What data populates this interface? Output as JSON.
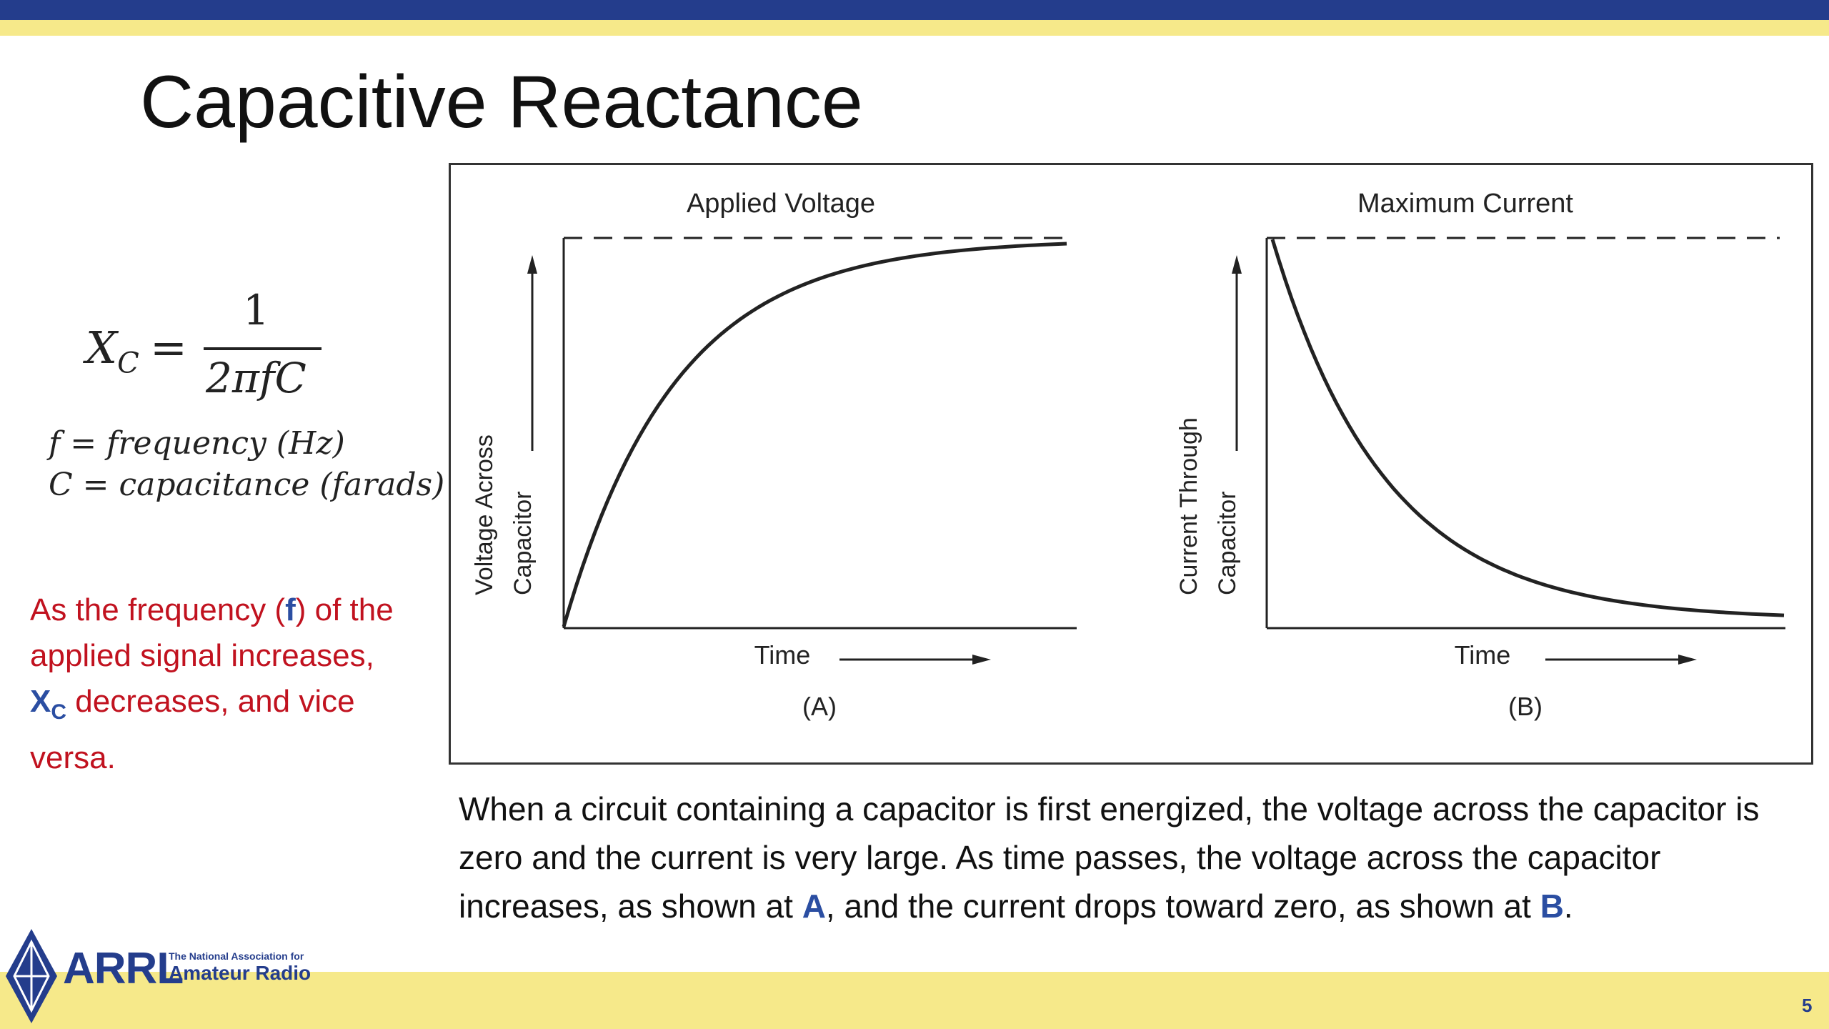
{
  "slide": {
    "title": "Capacitive Reactance",
    "page_number": "5"
  },
  "formula": {
    "lhs": "X",
    "lhs_sub": "C",
    "equals": "=",
    "numerator": "1",
    "denominator": "2πfC",
    "def_f": "f = frequency (Hz)",
    "def_c": "C = capacitance (farads)"
  },
  "note": {
    "t1": "As the frequency (",
    "f": "f",
    "t2": ") of the applied signal increases, ",
    "x": "X",
    "xsub": "C",
    "t3": " decreases, and vice versa."
  },
  "figure": {
    "panel_a": {
      "title": "Applied Voltage",
      "ylabel_line1": "Voltage Across",
      "ylabel_line2": "Capacitor",
      "xlabel": "Time",
      "tag": "(A)"
    },
    "panel_b": {
      "title": "Maximum Current",
      "ylabel_line1": "Current Through",
      "ylabel_line2": "Capacitor",
      "xlabel": "Time",
      "tag": "(B)"
    }
  },
  "caption": {
    "t1": "When a circuit containing a capacitor is first energized, the voltage across the capacitor is zero and the current is very large. As time passes, the voltage across the capacitor increases, as shown at ",
    "a": "A",
    "t2": ", and the current drops toward zero, as shown at ",
    "b": "B",
    "t3": "."
  },
  "logo": {
    "name": "ARRL",
    "tagline_small": "The National Association for",
    "tagline_large": "Amateur Radio"
  },
  "colors": {
    "brand_blue": "#243d8c",
    "accent_yellow": "#f6e98a",
    "note_red": "#c1121f",
    "highlight_blue": "#2b4ea2"
  }
}
